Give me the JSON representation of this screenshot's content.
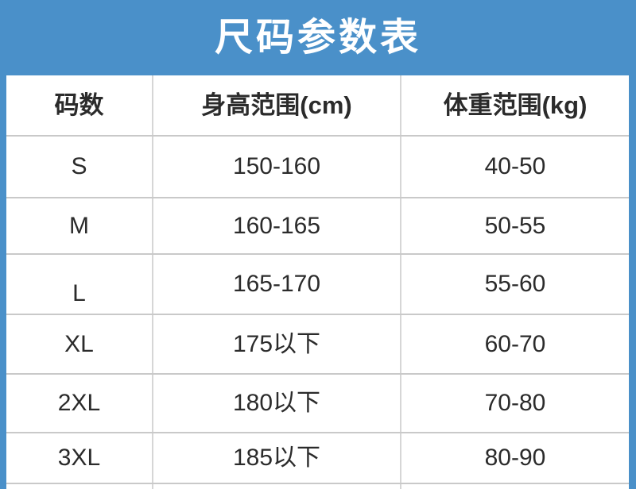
{
  "title": "尺码参数表",
  "colors": {
    "banner_blue": "#4a90c9",
    "table_background": "#ffffff",
    "title_text": "#ffffff",
    "cell_text": "#2b2b2b",
    "grid_line": "#c9c9c9"
  },
  "table": {
    "headers": [
      "码数",
      "身高范围(cm)",
      "体重范围(kg)"
    ],
    "rows": [
      {
        "size": "S",
        "height": "150-160",
        "weight": "40-50"
      },
      {
        "size": "M",
        "height": "160-165",
        "weight": "50-55"
      },
      {
        "size": "L",
        "height": "165-170",
        "weight": "55-60"
      },
      {
        "size": "XL",
        "height": "175以下",
        "weight": "60-70"
      },
      {
        "size": "2XL",
        "height": "180以下",
        "weight": "70-80"
      },
      {
        "size": "3XL",
        "height": "185以下",
        "weight": "80-90"
      }
    ]
  }
}
